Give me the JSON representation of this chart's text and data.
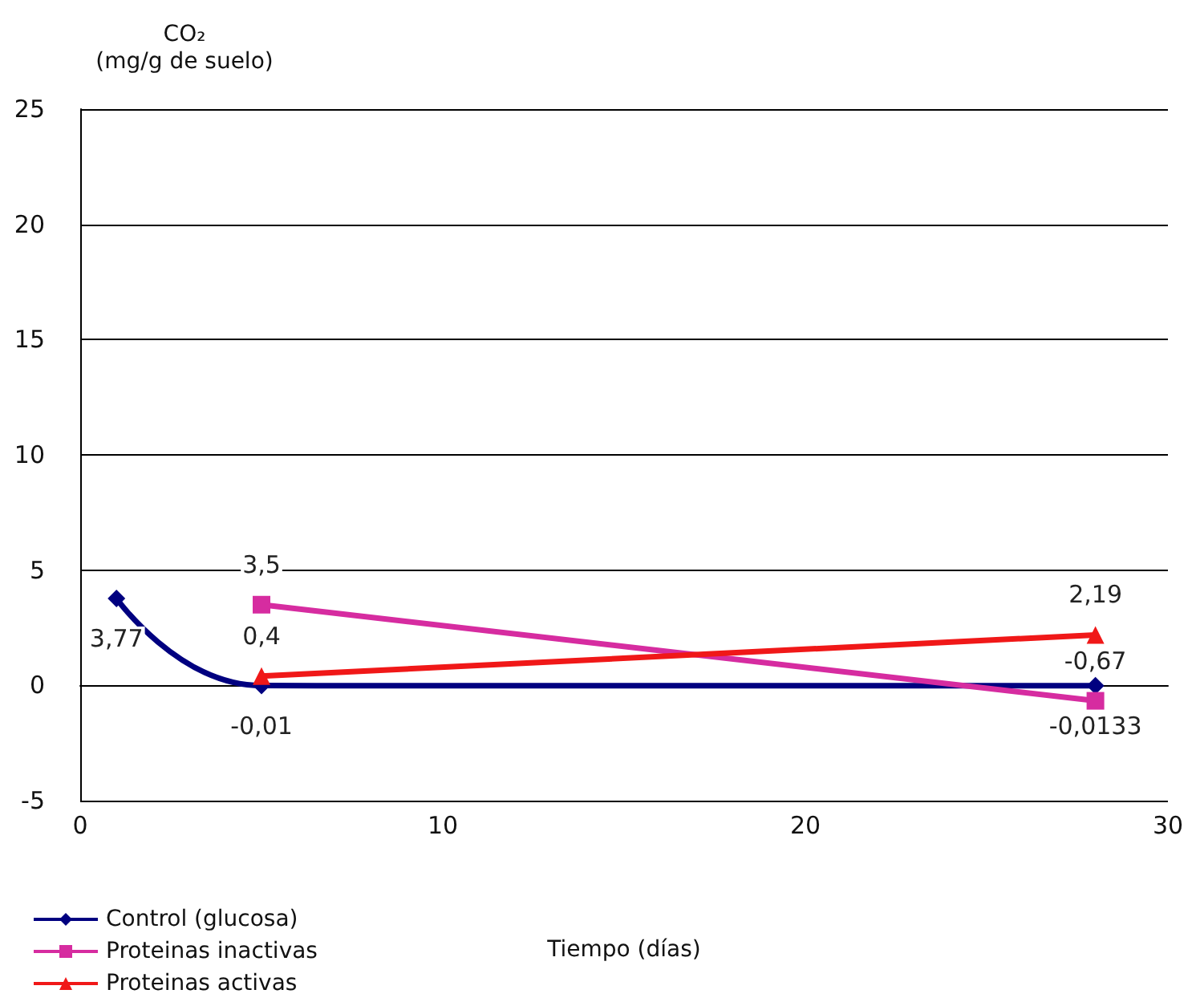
{
  "chart_data": {
    "type": "line",
    "ylabel": "CO₂\n(mg/g de suelo)",
    "xlabel": "Tiempo (días)",
    "xlim": [
      0,
      30
    ],
    "xticks": [
      0,
      10,
      20,
      30
    ],
    "ylim": [
      -5,
      25
    ],
    "yticks": [
      -5,
      0,
      5,
      10,
      15,
      20,
      25
    ],
    "grid": "y",
    "legend": "bottom left",
    "series": [
      {
        "name": "Control (glucosa)",
        "color": "#000080",
        "x": [
          1,
          5,
          28
        ],
        "values": [
          3.77,
          -0.01,
          -0.0133
        ],
        "value_labels": [
          "3,77",
          "-0,01",
          "-0,0133"
        ],
        "marker": "diamond"
      },
      {
        "name": "Proteinas inactivas",
        "color": "#d62ca0",
        "x": [
          5,
          28
        ],
        "values": [
          3.5,
          -0.67
        ],
        "value_labels": [
          "3,5",
          "-0,67"
        ],
        "marker": "square"
      },
      {
        "name": "Proteinas activas",
        "color": "#f01818",
        "x": [
          5,
          28
        ],
        "values": [
          0.4,
          2.19
        ],
        "value_labels": [
          "0,4",
          "2,19"
        ],
        "marker": "triangle"
      }
    ]
  }
}
